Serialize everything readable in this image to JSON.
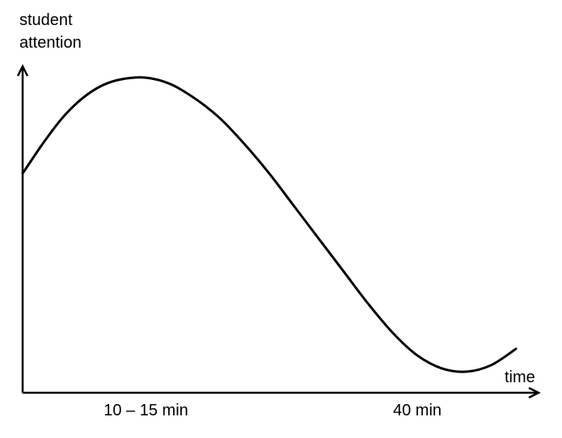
{
  "chart_data": {
    "type": "line",
    "title": "",
    "ylabel_lines": [
      "student",
      "attention"
    ],
    "xlabel": "time",
    "ticks": [
      {
        "label": "10 – 15 min",
        "x": 12.5
      },
      {
        "label": "40 min",
        "x": 40
      }
    ],
    "xlim": [
      0,
      50
    ],
    "ylim": [
      0,
      1
    ],
    "grid": false,
    "legend": "none",
    "axis_arrows": true,
    "series": [
      {
        "x": [
          0,
          2,
          4,
          6,
          8,
          10,
          12.5,
          15,
          17.5,
          20,
          22.5,
          25,
          27.5,
          30,
          32.5,
          35,
          37.5,
          40,
          42.5,
          45,
          47.5,
          50
        ],
        "y": [
          0.67,
          0.76,
          0.84,
          0.9,
          0.94,
          0.96,
          0.965,
          0.945,
          0.9,
          0.84,
          0.76,
          0.67,
          0.57,
          0.47,
          0.37,
          0.27,
          0.18,
          0.11,
          0.07,
          0.06,
          0.08,
          0.13
        ]
      }
    ],
    "line_color": "#000000"
  }
}
